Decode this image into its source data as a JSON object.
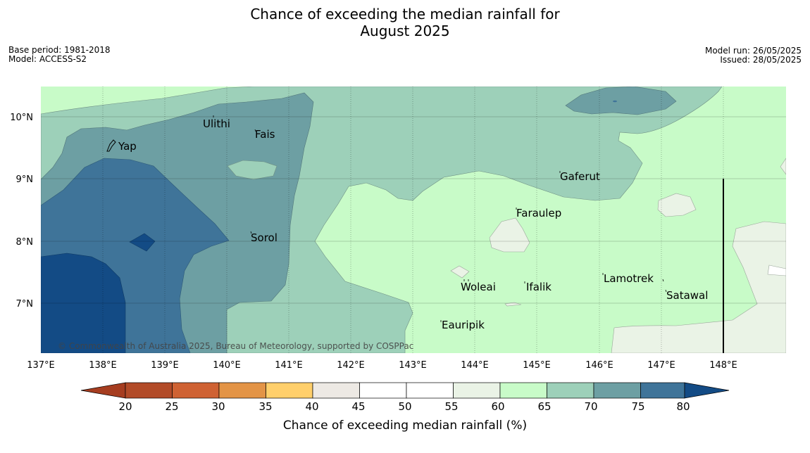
{
  "title": {
    "line1": "Chance of exceeding the median rainfall for",
    "line2": "August 2025"
  },
  "meta": {
    "base_period": "Base period: 1981-2018",
    "model": "Model: ACCESS-S2",
    "model_run": "Model run: 26/05/2025",
    "issued": "Issued: 28/05/2025"
  },
  "map": {
    "lon_ticks": [
      "137°E",
      "138°E",
      "139°E",
      "140°E",
      "141°E",
      "142°E",
      "143°E",
      "144°E",
      "145°E",
      "146°E",
      "147°E",
      "148°E"
    ],
    "lat_ticks": [
      "10°N",
      "9°N",
      "8°N",
      "7°N"
    ],
    "places": [
      {
        "name": "Ulithi"
      },
      {
        "name": "Fais"
      },
      {
        "name": "Yap"
      },
      {
        "name": "Gaferut"
      },
      {
        "name": "Faraulep"
      },
      {
        "name": "Sorol"
      },
      {
        "name": "Woleai"
      },
      {
        "name": "Ifalik"
      },
      {
        "name": "Lamotrek"
      },
      {
        "name": "Satawal"
      },
      {
        "name": "Eauripik"
      }
    ],
    "copyright": "© Commonwealth of Australia 2025, Bureau of Meteorology, supported by COSPPac"
  },
  "colorbar": {
    "title": "Chance of exceeding median rainfall (%)",
    "ticks": [
      "20",
      "25",
      "30",
      "35",
      "40",
      "45",
      "50",
      "55",
      "60",
      "65",
      "70",
      "75",
      "80"
    ],
    "colors": {
      "lt20": "#a63d20",
      "c20_25": "#b24b28",
      "c25_30": "#cf6233",
      "c30_35": "#e39446",
      "c35_40": "#ffcf6b",
      "c40_45": "#ede9e4",
      "c45_50": "#ffffff",
      "c50_55": "#ffffff",
      "c55_60": "#eaf3e6",
      "c60_65": "#c8fbc8",
      "c65_70": "#9dd0b9",
      "c70_75": "#6d9fa3",
      "c75_80": "#3f7499",
      "gt80": "#134b85"
    }
  }
}
